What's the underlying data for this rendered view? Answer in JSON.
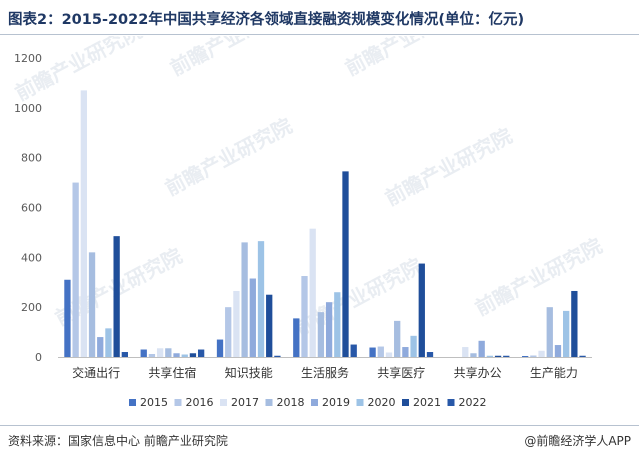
{
  "header": {
    "title": "图表2：2015-2022年中国共享经济各领域直接融资规模变化情况(单位：亿元)"
  },
  "footer": {
    "source": "资料来源：国家信息中心 前瞻产业研究院",
    "credit": "@前瞻经济学人APP"
  },
  "watermark": {
    "text": "前瞻产业研究院"
  },
  "chart_data": {
    "type": "bar",
    "title": "",
    "xlabel": "",
    "ylabel": "",
    "ylim": [
      0,
      1200
    ],
    "yticks": [
      0,
      200,
      400,
      600,
      800,
      1000,
      1200
    ],
    "grid": false,
    "legend_position": "bottom",
    "categories": [
      "交通出行",
      "共享住宿",
      "知识技能",
      "生活服务",
      "共享医疗",
      "共享办公",
      "生产能力"
    ],
    "series": [
      {
        "name": "2015",
        "color": "#4472c4",
        "values": [
          310,
          30,
          70,
          155,
          38,
          0,
          4
        ]
      },
      {
        "name": "2016",
        "color": "#b4c7e7",
        "values": [
          700,
          12,
          200,
          325,
          42,
          0,
          6
        ]
      },
      {
        "name": "2017",
        "color": "#dae3f3",
        "values": [
          1070,
          35,
          265,
          515,
          18,
          40,
          25
        ]
      },
      {
        "name": "2018",
        "color": "#a6bde0",
        "values": [
          420,
          35,
          460,
          180,
          145,
          15,
          200
        ]
      },
      {
        "name": "2019",
        "color": "#8faadc",
        "values": [
          80,
          15,
          315,
          220,
          40,
          65,
          48
        ]
      },
      {
        "name": "2020",
        "color": "#9dc3e6",
        "values": [
          115,
          10,
          465,
          260,
          85,
          5,
          185
        ]
      },
      {
        "name": "2021",
        "color": "#1f4e9a",
        "values": [
          485,
          15,
          250,
          745,
          375,
          5,
          265
        ]
      },
      {
        "name": "2022",
        "color": "#2858a8",
        "values": [
          20,
          30,
          5,
          50,
          20,
          5,
          5
        ]
      }
    ]
  }
}
